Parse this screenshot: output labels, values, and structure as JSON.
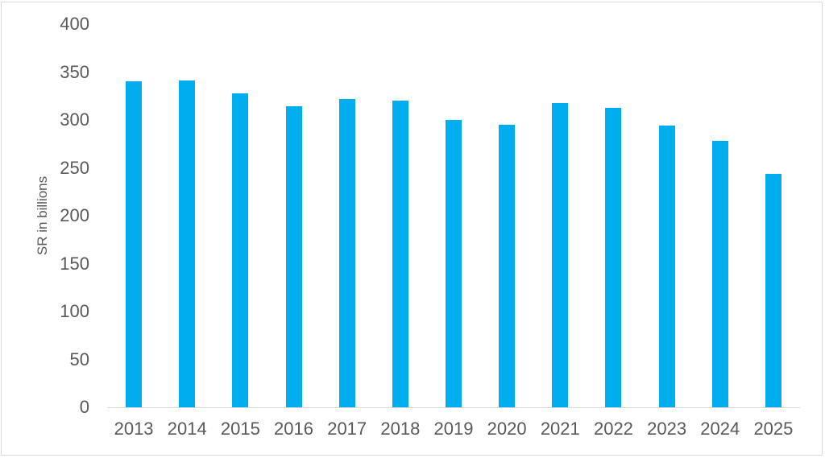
{
  "chart_data": {
    "type": "bar",
    "categories": [
      "2013",
      "2014",
      "2015",
      "2016",
      "2017",
      "2018",
      "2019",
      "2020",
      "2021",
      "2022",
      "2023",
      "2024",
      "2025"
    ],
    "values": [
      340,
      341,
      328,
      314,
      322,
      320,
      300,
      295,
      318,
      313,
      294,
      278,
      244
    ],
    "title": "",
    "xlabel": "",
    "ylabel": "SR in billions",
    "ylim": [
      0,
      400
    ],
    "ytick_step": 50,
    "ytick_labels": [
      "0",
      "50",
      "100",
      "150",
      "200",
      "250",
      "300",
      "350",
      "400"
    ],
    "grid": false,
    "legend": false,
    "colors": {
      "bar": "#00AEEF",
      "axis_line": "#D9D9D9",
      "tick_text": "#595959",
      "frame": "#D9D9D9",
      "background": "#FFFFFF"
    }
  }
}
